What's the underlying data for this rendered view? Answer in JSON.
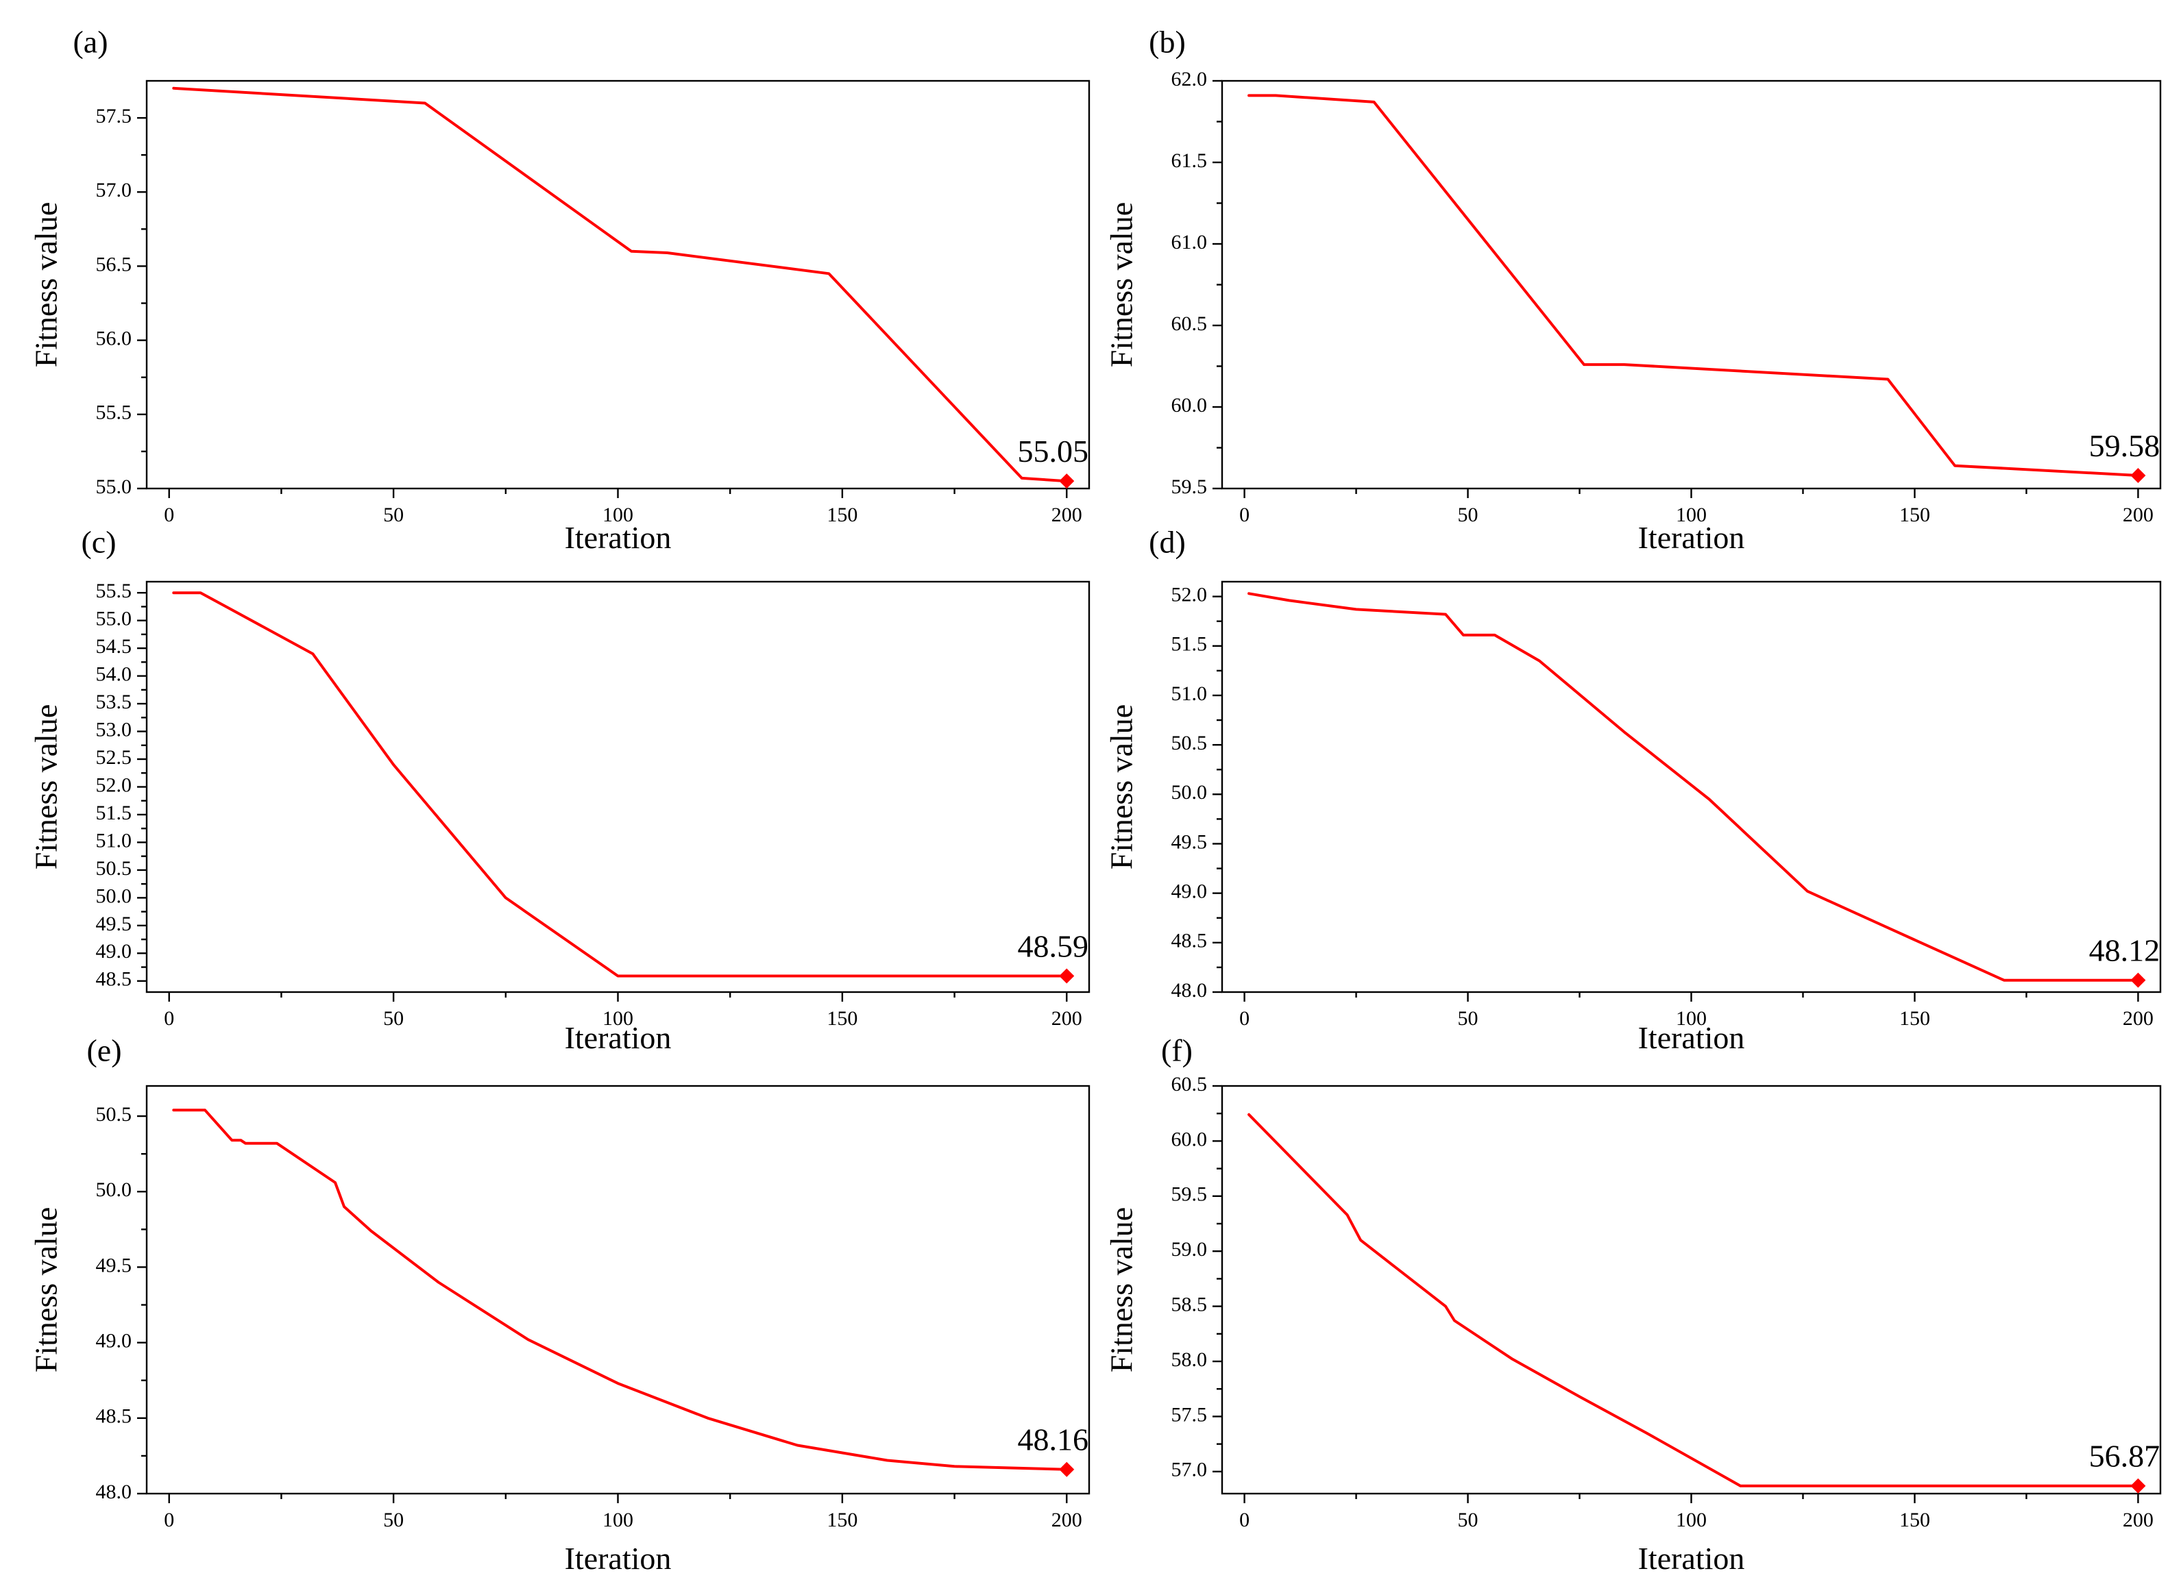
{
  "colors": {
    "series": "#ff0000",
    "axis": "#000000",
    "background": "#ffffff"
  },
  "chart_data": [
    {
      "panel": "(a)",
      "type": "line",
      "xlabel": "Iteration",
      "ylabel": "Fitness value",
      "xlim": [
        -5,
        205
      ],
      "ylim": [
        55.0,
        57.75
      ],
      "xticks": [
        0,
        50,
        100,
        150,
        200
      ],
      "xtick_labels": [
        "0",
        "50",
        "100",
        "150",
        "200"
      ],
      "yticks": [
        55.0,
        55.5,
        56.0,
        56.5,
        57.0,
        57.5
      ],
      "ytick_labels": [
        "55.0",
        "55.5",
        "56.0",
        "56.5",
        "57.0",
        "57.5"
      ],
      "series": [
        {
          "name": "Fitness",
          "x": [
            1,
            57,
            103,
            111,
            147,
            190,
            200
          ],
          "y": [
            57.7,
            57.6,
            56.6,
            56.59,
            56.45,
            55.07,
            55.05
          ]
        }
      ],
      "final_label": "55.05",
      "final_value": 55.05,
      "final_x": 200,
      "grid": false
    },
    {
      "panel": "(b)",
      "type": "line",
      "xlabel": "Iteration",
      "ylabel": "Fitness value",
      "xlim": [
        -5,
        205
      ],
      "ylim": [
        59.5,
        62.0
      ],
      "xticks": [
        0,
        50,
        100,
        150,
        200
      ],
      "xtick_labels": [
        "0",
        "50",
        "100",
        "150",
        "200"
      ],
      "yticks": [
        59.5,
        60.0,
        60.5,
        61.0,
        61.5,
        62.0
      ],
      "ytick_labels": [
        "59.5",
        "60.0",
        "60.5",
        "61.0",
        "61.5",
        "62.0"
      ],
      "series": [
        {
          "name": "Fitness",
          "x": [
            1,
            7,
            29,
            76,
            85,
            144,
            159,
            200
          ],
          "y": [
            61.91,
            61.91,
            61.87,
            60.26,
            60.26,
            60.17,
            59.64,
            59.58
          ]
        }
      ],
      "final_label": "59.58",
      "final_value": 59.58,
      "final_x": 200,
      "grid": false
    },
    {
      "panel": "(c)",
      "type": "line",
      "xlabel": "Iteration",
      "ylabel": "Fitness value",
      "xlim": [
        -5,
        205
      ],
      "ylim": [
        48.3,
        55.7
      ],
      "xticks": [
        0,
        50,
        100,
        150,
        200
      ],
      "xtick_labels": [
        "0",
        "50",
        "100",
        "150",
        "200"
      ],
      "yticks": [
        48.5,
        49.0,
        49.5,
        50.0,
        50.5,
        51.0,
        51.5,
        52.0,
        52.5,
        53.0,
        53.5,
        54.0,
        54.5,
        55.0,
        55.5
      ],
      "ytick_labels": [
        "48.5",
        "49.0",
        "49.5",
        "50.0",
        "50.5",
        "51.0",
        "51.5",
        "52.0",
        "52.5",
        "53.0",
        "53.5",
        "54.0",
        "54.5",
        "55.0",
        "55.5"
      ],
      "series": [
        {
          "name": "Fitness",
          "x": [
            1,
            7,
            32,
            50,
            75,
            100,
            200
          ],
          "y": [
            55.5,
            55.5,
            54.4,
            52.4,
            50.0,
            48.59,
            48.59
          ]
        }
      ],
      "final_label": "48.59",
      "final_value": 48.59,
      "final_x": 200,
      "grid": false
    },
    {
      "panel": "(d)",
      "type": "line",
      "xlabel": "Iteration",
      "ylabel": "Fitness value",
      "xlim": [
        -5,
        205
      ],
      "ylim": [
        48.0,
        52.15
      ],
      "xticks": [
        0,
        50,
        100,
        150,
        200
      ],
      "xtick_labels": [
        "0",
        "50",
        "100",
        "150",
        "200"
      ],
      "yticks": [
        48.0,
        48.5,
        49.0,
        49.5,
        50.0,
        50.5,
        51.0,
        51.5,
        52.0
      ],
      "ytick_labels": [
        "48.0",
        "48.5",
        "49.0",
        "49.5",
        "50.0",
        "50.5",
        "51.0",
        "51.5",
        "52.0"
      ],
      "series": [
        {
          "name": "Fitness",
          "x": [
            1,
            10,
            25,
            45,
            49,
            56,
            66,
            85,
            104,
            126,
            145,
            170,
            200
          ],
          "y": [
            52.03,
            51.96,
            51.87,
            51.82,
            51.61,
            51.61,
            51.35,
            50.63,
            49.95,
            49.02,
            48.63,
            48.12,
            48.12
          ]
        }
      ],
      "final_label": "48.12",
      "final_value": 48.12,
      "final_x": 200,
      "grid": false
    },
    {
      "panel": "(e)",
      "type": "line",
      "xlabel": "Iteration",
      "ylabel": "Fitness value",
      "xlim": [
        -5,
        205
      ],
      "ylim": [
        48.0,
        50.7
      ],
      "xticks": [
        0,
        50,
        100,
        150,
        200
      ],
      "xtick_labels": [
        "0",
        "50",
        "100",
        "150",
        "200"
      ],
      "yticks": [
        48.0,
        48.5,
        49.0,
        49.5,
        50.0,
        50.5
      ],
      "ytick_labels": [
        "48.0",
        "48.5",
        "49.0",
        "49.5",
        "50.0",
        "50.5"
      ],
      "series": [
        {
          "name": "Fitness",
          "x": [
            1,
            8,
            14,
            16,
            17,
            24,
            37,
            39,
            45,
            60,
            80,
            100,
            120,
            140,
            160,
            175,
            200
          ],
          "y": [
            50.54,
            50.54,
            50.34,
            50.34,
            50.32,
            50.32,
            50.06,
            49.9,
            49.74,
            49.4,
            49.02,
            48.73,
            48.5,
            48.32,
            48.22,
            48.18,
            48.16
          ]
        }
      ],
      "final_label": "48.16",
      "final_value": 48.16,
      "final_x": 200,
      "grid": false
    },
    {
      "panel": "(f)",
      "type": "line",
      "xlabel": "Iteration",
      "ylabel": "Fitness value",
      "xlim": [
        -5,
        205
      ],
      "ylim": [
        56.8,
        60.5
      ],
      "xticks": [
        0,
        50,
        100,
        150,
        200
      ],
      "xtick_labels": [
        "0",
        "50",
        "100",
        "150",
        "200"
      ],
      "yticks": [
        57.0,
        57.5,
        58.0,
        58.5,
        59.0,
        59.5,
        60.0,
        60.5
      ],
      "ytick_labels": [
        "57.0",
        "57.5",
        "58.0",
        "58.5",
        "59.0",
        "59.5",
        "60.0",
        "60.5"
      ],
      "series": [
        {
          "name": "Fitness",
          "x": [
            1,
            23,
            26,
            45,
            47,
            60,
            75,
            90,
            111,
            200
          ],
          "y": [
            60.24,
            59.33,
            59.1,
            58.5,
            58.37,
            58.02,
            57.68,
            57.35,
            56.87,
            56.87
          ]
        }
      ],
      "final_label": "56.87",
      "final_value": 56.87,
      "final_x": 200,
      "grid": false
    }
  ]
}
